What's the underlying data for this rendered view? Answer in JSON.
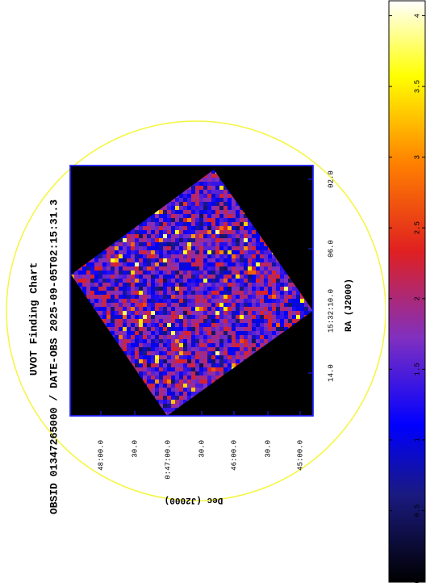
{
  "title": "UVOT Finding Chart",
  "subtitle": "OBSID 01347265000 / DATE-OBS 2025-09-05T02:15:31.3",
  "x_axis": {
    "label": "RA (J2000)",
    "ticks": [
      "14.0",
      "15:32:10.0",
      "06.0",
      "02.0"
    ]
  },
  "y_axis": {
    "label": "Dec (J2000)",
    "ticks": [
      "48:00.0",
      "30.0",
      "0:47:00.0",
      "30.0",
      "46:00.0",
      "30.0",
      "45:00.0"
    ]
  },
  "colorbar": {
    "range": [
      0,
      4.1
    ],
    "ticks": [
      0,
      0.5,
      1,
      1.5,
      2,
      2.5,
      3,
      3.5,
      4
    ]
  }
}
